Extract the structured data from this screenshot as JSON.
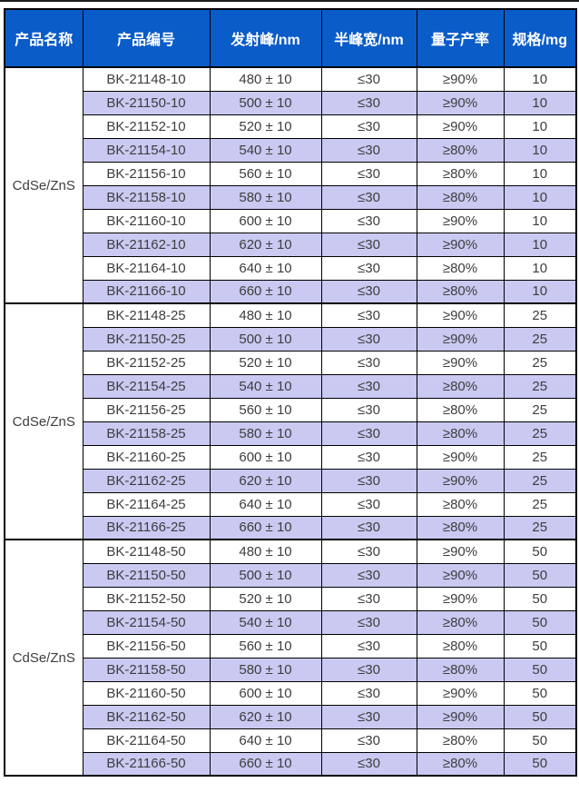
{
  "colors": {
    "header_bg": "#0a5cc8",
    "header_text": "#ffffff",
    "row_alt_bg": "#c9c9f1",
    "row_bg": "#ffffff",
    "text": "#3e3e3e",
    "border": "#000000"
  },
  "table": {
    "columns": [
      "产品名称",
      "产品编号",
      "发射峰/nm",
      "半峰宽/nm",
      "量子产率",
      "规格/mg"
    ],
    "groups": [
      {
        "product_name": "CdSe/ZnS",
        "rows": [
          {
            "code": "BK-21148-10",
            "emission": "480 ± 10",
            "fwhm": "≤30",
            "qy": "≥90%",
            "spec": "10"
          },
          {
            "code": "BK-21150-10",
            "emission": "500 ± 10",
            "fwhm": "≤30",
            "qy": "≥90%",
            "spec": "10"
          },
          {
            "code": "BK-21152-10",
            "emission": "520 ± 10",
            "fwhm": "≤30",
            "qy": "≥90%",
            "spec": "10"
          },
          {
            "code": "BK-21154-10",
            "emission": "540 ± 10",
            "fwhm": "≤30",
            "qy": "≥80%",
            "spec": "10"
          },
          {
            "code": "BK-21156-10",
            "emission": "560 ± 10",
            "fwhm": "≤30",
            "qy": "≥80%",
            "spec": "10"
          },
          {
            "code": "BK-21158-10",
            "emission": "580 ± 10",
            "fwhm": "≤30",
            "qy": "≥80%",
            "spec": "10"
          },
          {
            "code": "BK-21160-10",
            "emission": "600 ± 10",
            "fwhm": "≤30",
            "qy": "≥90%",
            "spec": "10"
          },
          {
            "code": "BK-21162-10",
            "emission": "620 ± 10",
            "fwhm": "≤30",
            "qy": "≥90%",
            "spec": "10"
          },
          {
            "code": "BK-21164-10",
            "emission": "640 ± 10",
            "fwhm": "≤30",
            "qy": "≥80%",
            "spec": "10"
          },
          {
            "code": "BK-21166-10",
            "emission": "660 ± 10",
            "fwhm": "≤30",
            "qy": "≥80%",
            "spec": "10"
          }
        ]
      },
      {
        "product_name": "CdSe/ZnS",
        "rows": [
          {
            "code": "BK-21148-25",
            "emission": "480 ± 10",
            "fwhm": "≤30",
            "qy": "≥90%",
            "spec": "25"
          },
          {
            "code": "BK-21150-25",
            "emission": "500 ± 10",
            "fwhm": "≤30",
            "qy": "≥90%",
            "spec": "25"
          },
          {
            "code": "BK-21152-25",
            "emission": "520 ± 10",
            "fwhm": "≤30",
            "qy": "≥90%",
            "spec": "25"
          },
          {
            "code": "BK-21154-25",
            "emission": "540 ± 10",
            "fwhm": "≤30",
            "qy": "≥80%",
            "spec": "25"
          },
          {
            "code": "BK-21156-25",
            "emission": "560 ± 10",
            "fwhm": "≤30",
            "qy": "≥80%",
            "spec": "25"
          },
          {
            "code": "BK-21158-25",
            "emission": "580 ± 10",
            "fwhm": "≤30",
            "qy": "≥80%",
            "spec": "25"
          },
          {
            "code": "BK-21160-25",
            "emission": "600 ± 10",
            "fwhm": "≤30",
            "qy": "≥90%",
            "spec": "25"
          },
          {
            "code": "BK-21162-25",
            "emission": "620 ± 10",
            "fwhm": "≤30",
            "qy": "≥90%",
            "spec": "25"
          },
          {
            "code": "BK-21164-25",
            "emission": "640 ± 10",
            "fwhm": "≤30",
            "qy": "≥80%",
            "spec": "25"
          },
          {
            "code": "BK-21166-25",
            "emission": "660 ± 10",
            "fwhm": "≤30",
            "qy": "≥80%",
            "spec": "25"
          }
        ]
      },
      {
        "product_name": "CdSe/ZnS",
        "rows": [
          {
            "code": "BK-21148-50",
            "emission": "480 ± 10",
            "fwhm": "≤30",
            "qy": "≥90%",
            "spec": "50"
          },
          {
            "code": "BK-21150-50",
            "emission": "500 ± 10",
            "fwhm": "≤30",
            "qy": "≥90%",
            "spec": "50"
          },
          {
            "code": "BK-21152-50",
            "emission": "520 ± 10",
            "fwhm": "≤30",
            "qy": "≥90%",
            "spec": "50"
          },
          {
            "code": "BK-21154-50",
            "emission": "540 ± 10",
            "fwhm": "≤30",
            "qy": "≥80%",
            "spec": "50"
          },
          {
            "code": "BK-21156-50",
            "emission": "560 ± 10",
            "fwhm": "≤30",
            "qy": "≥80%",
            "spec": "50"
          },
          {
            "code": "BK-21158-50",
            "emission": "580 ± 10",
            "fwhm": "≤30",
            "qy": "≥80%",
            "spec": "50"
          },
          {
            "code": "BK-21160-50",
            "emission": "600 ± 10",
            "fwhm": "≤30",
            "qy": "≥90%",
            "spec": "50"
          },
          {
            "code": "BK-21162-50",
            "emission": "620 ± 10",
            "fwhm": "≤30",
            "qy": "≥90%",
            "spec": "50"
          },
          {
            "code": "BK-21164-50",
            "emission": "640 ± 10",
            "fwhm": "≤30",
            "qy": "≥80%",
            "spec": "50"
          },
          {
            "code": "BK-21166-50",
            "emission": "660 ± 10",
            "fwhm": "≤30",
            "qy": "≥80%",
            "spec": "50"
          }
        ]
      }
    ]
  }
}
